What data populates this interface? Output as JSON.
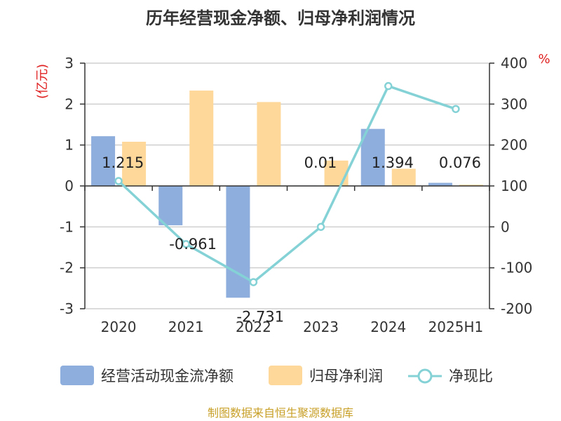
{
  "chart_data": {
    "type": "bar",
    "title": "历年经营现金净额、归母净利润情况",
    "categories": [
      "2020",
      "2021",
      "2022",
      "2023",
      "2024",
      "2025H1"
    ],
    "series": [
      {
        "name": "经营活动现金流净额",
        "type": "bar",
        "axis": "left",
        "color": "#8eaedd",
        "values": [
          1.215,
          -0.961,
          -2.731,
          0.01,
          1.394,
          0.076
        ]
      },
      {
        "name": "归母净利润",
        "type": "bar",
        "axis": "left",
        "color": "#fdd89a",
        "values": [
          1.08,
          2.33,
          2.05,
          0.62,
          0.42,
          0.03
        ]
      },
      {
        "name": "净现比",
        "type": "line",
        "axis": "right",
        "color": "#85d2d6",
        "values": [
          112,
          -42,
          -135,
          0,
          344,
          288
        ]
      }
    ],
    "data_labels": [
      "1.215",
      "-0.961",
      "-2.731",
      "0.01",
      "1.394",
      "0.076"
    ],
    "y_left": {
      "label": "(亿元)",
      "ticks": [
        "3",
        "2",
        "1",
        "0",
        "-1",
        "-2",
        "-3"
      ],
      "ylim": [
        -3,
        3
      ]
    },
    "y_right": {
      "label": "%",
      "ticks": [
        "400",
        "300",
        "200",
        "100",
        "0",
        "-100",
        "-200"
      ],
      "ylim": [
        -200,
        400
      ]
    },
    "grid": true,
    "legend_position": "bottom"
  },
  "source": "制图数据来自恒生聚源数据库"
}
